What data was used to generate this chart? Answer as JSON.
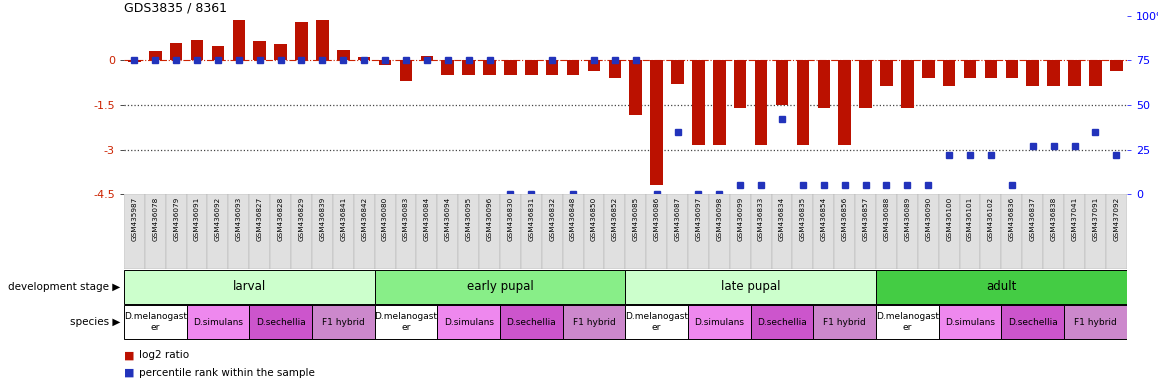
{
  "title": "GDS3835 / 8361",
  "sample_ids": [
    "GSM435987",
    "GSM436078",
    "GSM436079",
    "GSM436091",
    "GSM436092",
    "GSM436093",
    "GSM436827",
    "GSM436828",
    "GSM436829",
    "GSM436839",
    "GSM436841",
    "GSM436842",
    "GSM436080",
    "GSM436083",
    "GSM436084",
    "GSM436094",
    "GSM436095",
    "GSM436096",
    "GSM436830",
    "GSM436831",
    "GSM436832",
    "GSM436848",
    "GSM436850",
    "GSM436852",
    "GSM436085",
    "GSM436086",
    "GSM436087",
    "GSM436097",
    "GSM436098",
    "GSM436099",
    "GSM436833",
    "GSM436834",
    "GSM436835",
    "GSM436854",
    "GSM436856",
    "GSM436857",
    "GSM436088",
    "GSM436089",
    "GSM436090",
    "GSM436100",
    "GSM436101",
    "GSM436102",
    "GSM436836",
    "GSM436837",
    "GSM436838",
    "GSM437041",
    "GSM437091",
    "GSM437092"
  ],
  "log2_ratio": [
    -0.05,
    0.3,
    0.6,
    0.7,
    0.5,
    1.35,
    0.65,
    0.55,
    1.3,
    1.35,
    0.35,
    0.1,
    -0.15,
    -0.7,
    0.15,
    -0.5,
    -0.5,
    -0.5,
    -0.5,
    -0.5,
    -0.5,
    -0.5,
    -0.35,
    -0.6,
    -1.85,
    -4.2,
    -0.8,
    -2.85,
    -2.85,
    -1.6,
    -2.85,
    -1.5,
    -2.85,
    -1.6,
    -2.85,
    -1.6,
    -0.85,
    -1.6,
    -0.6,
    -0.85,
    -0.6,
    -0.6,
    -0.6,
    -0.85,
    -0.85,
    -0.85,
    -0.85,
    -0.35
  ],
  "percentile": [
    75,
    75,
    75,
    75,
    75,
    75,
    75,
    75,
    75,
    75,
    75,
    75,
    75,
    75,
    75,
    75,
    75,
    75,
    0,
    0,
    75,
    0,
    75,
    75,
    75,
    0,
    35,
    0,
    0,
    5,
    5,
    42,
    5,
    5,
    5,
    5,
    5,
    5,
    5,
    22,
    22,
    22,
    5,
    27,
    27,
    27,
    35,
    22
  ],
  "development_stages": [
    {
      "label": "larval",
      "start": 0,
      "end": 12,
      "color": "#ccffcc"
    },
    {
      "label": "early pupal",
      "start": 12,
      "end": 24,
      "color": "#88ee88"
    },
    {
      "label": "late pupal",
      "start": 24,
      "end": 36,
      "color": "#ccffcc"
    },
    {
      "label": "adult",
      "start": 36,
      "end": 48,
      "color": "#44cc44"
    }
  ],
  "species_groups": [
    {
      "label": "D.melanogast\ner",
      "start": 0,
      "end": 3,
      "color": "#ffffff"
    },
    {
      "label": "D.simulans",
      "start": 3,
      "end": 6,
      "color": "#ee88ee"
    },
    {
      "label": "D.sechellia",
      "start": 6,
      "end": 9,
      "color": "#cc55cc"
    },
    {
      "label": "F1 hybrid",
      "start": 9,
      "end": 12,
      "color": "#cc88cc"
    },
    {
      "label": "D.melanogast\ner",
      "start": 12,
      "end": 15,
      "color": "#ffffff"
    },
    {
      "label": "D.simulans",
      "start": 15,
      "end": 18,
      "color": "#ee88ee"
    },
    {
      "label": "D.sechellia",
      "start": 18,
      "end": 21,
      "color": "#cc55cc"
    },
    {
      "label": "F1 hybrid",
      "start": 21,
      "end": 24,
      "color": "#cc88cc"
    },
    {
      "label": "D.melanogast\ner",
      "start": 24,
      "end": 27,
      "color": "#ffffff"
    },
    {
      "label": "D.simulans",
      "start": 27,
      "end": 30,
      "color": "#ee88ee"
    },
    {
      "label": "D.sechellia",
      "start": 30,
      "end": 33,
      "color": "#cc55cc"
    },
    {
      "label": "F1 hybrid",
      "start": 33,
      "end": 36,
      "color": "#cc88cc"
    },
    {
      "label": "D.melanogast\ner",
      "start": 36,
      "end": 39,
      "color": "#ffffff"
    },
    {
      "label": "D.simulans",
      "start": 39,
      "end": 42,
      "color": "#ee88ee"
    },
    {
      "label": "D.sechellia",
      "start": 42,
      "end": 45,
      "color": "#cc55cc"
    },
    {
      "label": "F1 hybrid",
      "start": 45,
      "end": 48,
      "color": "#cc88cc"
    }
  ],
  "ylim_left": [
    -4.5,
    1.5
  ],
  "ylim_right": [
    0,
    100
  ],
  "yticks_left": [
    0,
    -1.5,
    -3,
    -4.5
  ],
  "yticks_right": [
    0,
    25,
    50,
    75,
    100
  ],
  "bar_color": "#bb1100",
  "dot_color": "#2233bb",
  "hlines": [
    {
      "y": 0,
      "color": "#cc2200",
      "linestyle": "dashdot",
      "lw": 0.8
    },
    {
      "y": -1.5,
      "color": "#444444",
      "linestyle": "dotted",
      "lw": 0.9
    },
    {
      "y": -3.0,
      "color": "#444444",
      "linestyle": "dotted",
      "lw": 0.9
    }
  ],
  "dev_label": "development stage",
  "species_label": "species",
  "legend_items": [
    {
      "color": "#bb1100",
      "label": "log2 ratio"
    },
    {
      "color": "#2233bb",
      "label": "percentile rank within the sample"
    }
  ]
}
